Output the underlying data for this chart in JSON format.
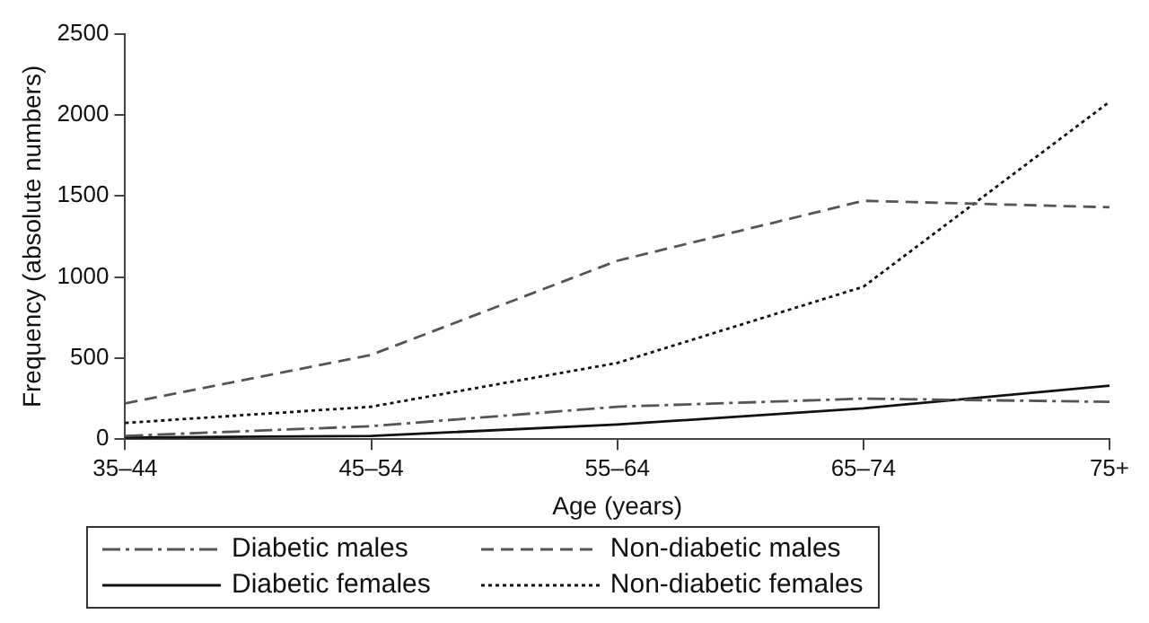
{
  "chart_data": {
    "type": "line",
    "xlabel": "Age (years)",
    "ylabel": "Frequency (absolute numbers)",
    "categories": [
      "35–44",
      "45–54",
      "55–64",
      "65–74",
      "75+"
    ],
    "series": [
      {
        "name": "Diabetic males",
        "color": "#555555",
        "line_style": "dashdot",
        "values": [
          20,
          80,
          200,
          250,
          230
        ]
      },
      {
        "name": "Non-diabetic males",
        "color": "#555555",
        "line_style": "dashed",
        "values": [
          220,
          520,
          1100,
          1470,
          1430
        ]
      },
      {
        "name": "Diabetic females",
        "color": "#111111",
        "line_style": "solid",
        "values": [
          10,
          20,
          90,
          190,
          330
        ]
      },
      {
        "name": "Non-diabetic females",
        "color": "#111111",
        "line_style": "dotted",
        "values": [
          100,
          200,
          470,
          940,
          2080
        ]
      }
    ],
    "ylim": [
      0,
      2500
    ],
    "yticks": [
      0,
      500,
      1000,
      1500,
      2000,
      2500
    ],
    "grid": false,
    "legend": "bottom",
    "marker": "none"
  }
}
